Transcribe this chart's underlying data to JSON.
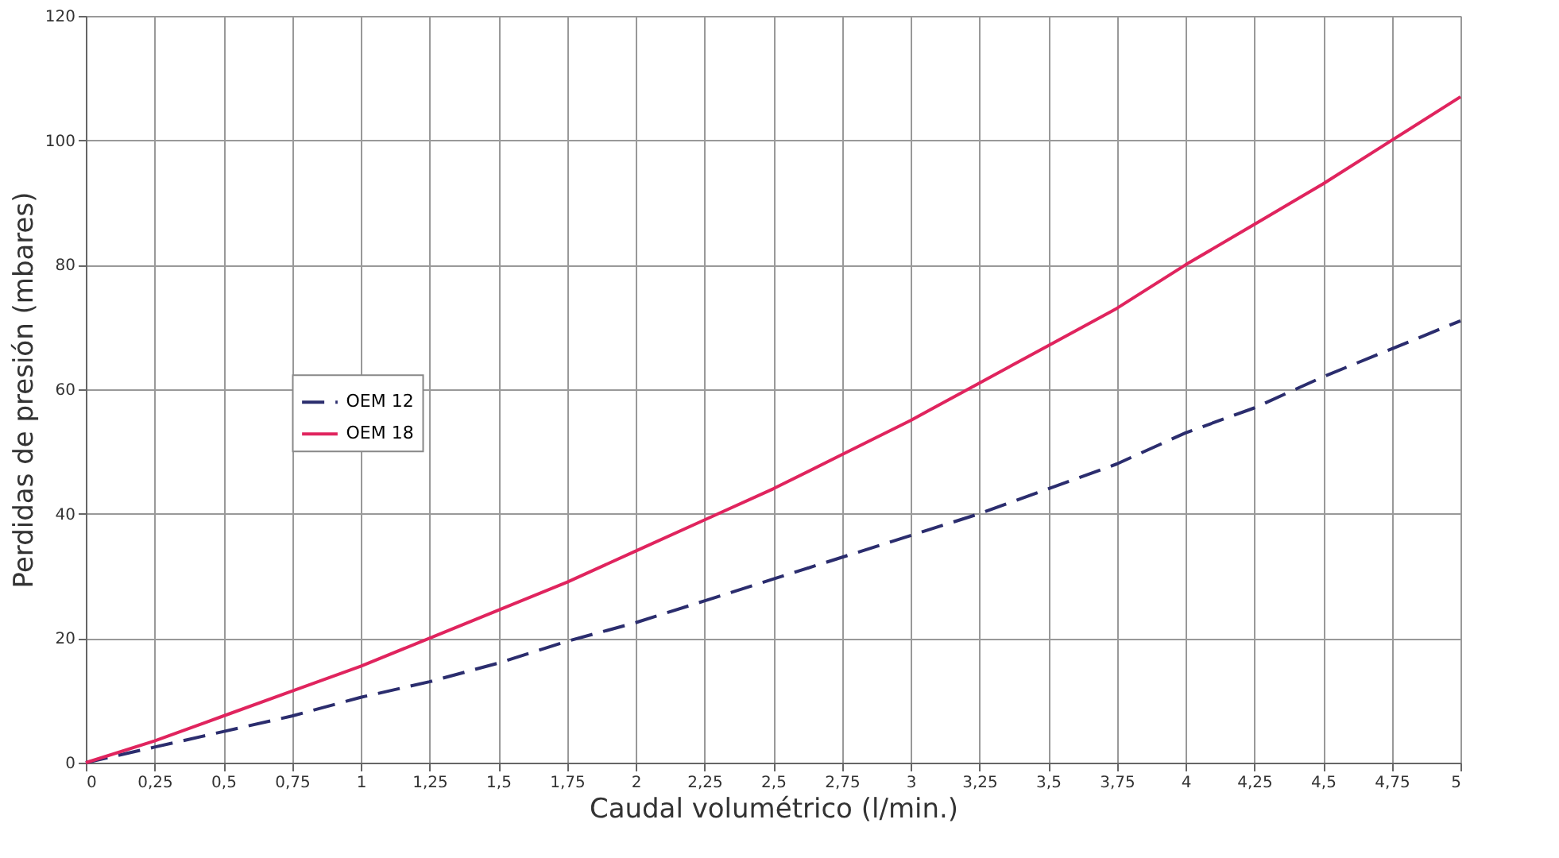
{
  "chart_data": {
    "type": "line",
    "xlabel": "Caudal volumétrico (l/min.)",
    "ylabel": "Perdidas de presión (mbares)",
    "x": [
      0,
      0.25,
      0.5,
      0.75,
      1,
      1.25,
      1.5,
      1.75,
      2,
      2.25,
      2.5,
      2.75,
      3,
      3.25,
      3.5,
      3.75,
      4,
      4.25,
      4.5,
      4.75,
      5
    ],
    "series": [
      {
        "name": "OEM 12",
        "color": "#2b2d6e",
        "line_style": "dashed",
        "values": [
          0,
          2.5,
          5,
          7.5,
          10.5,
          13,
          16,
          19.5,
          22.5,
          26,
          29.5,
          33,
          36.5,
          40,
          44,
          48,
          53,
          57,
          62,
          66.5,
          71
        ]
      },
      {
        "name": "OEM 18",
        "color": "#e0245e",
        "line_style": "solid",
        "values": [
          0,
          3.5,
          7.5,
          11.5,
          15.5,
          20,
          24.5,
          29,
          34,
          39,
          44,
          49.5,
          55,
          61,
          67,
          73,
          80,
          86.5,
          93,
          100,
          107
        ]
      }
    ],
    "xlim": [
      0,
      5
    ],
    "xticks": [
      0,
      {
        "value": 0.25,
        "label": "0,25"
      },
      {
        "value": 0.5,
        "label": "0,5"
      },
      {
        "value": 0.75,
        "label": "0,75"
      },
      1,
      {
        "value": 1.25,
        "label": "1,25"
      },
      {
        "value": 1.5,
        "label": "1,5"
      },
      {
        "value": 1.75,
        "label": "1,75"
      },
      2,
      {
        "value": 2.25,
        "label": "2,25"
      },
      {
        "value": 2.5,
        "label": "2,5"
      },
      {
        "value": 2.75,
        "label": "2,75"
      },
      3,
      {
        "value": 3.25,
        "label": "3,25"
      },
      {
        "value": 3.5,
        "label": "3,5"
      },
      {
        "value": 3.75,
        "label": "3,75"
      },
      4,
      {
        "value": 4.25,
        "label": "4,25"
      },
      {
        "value": 4.5,
        "label": "4,5"
      },
      {
        "value": 4.75,
        "label": "4,75"
      },
      5
    ],
    "ylim": [
      0,
      120
    ],
    "yticks": [
      0,
      20,
      40,
      60,
      80,
      100,
      120
    ],
    "grid": true,
    "legend": "left",
    "marker": "none"
  }
}
